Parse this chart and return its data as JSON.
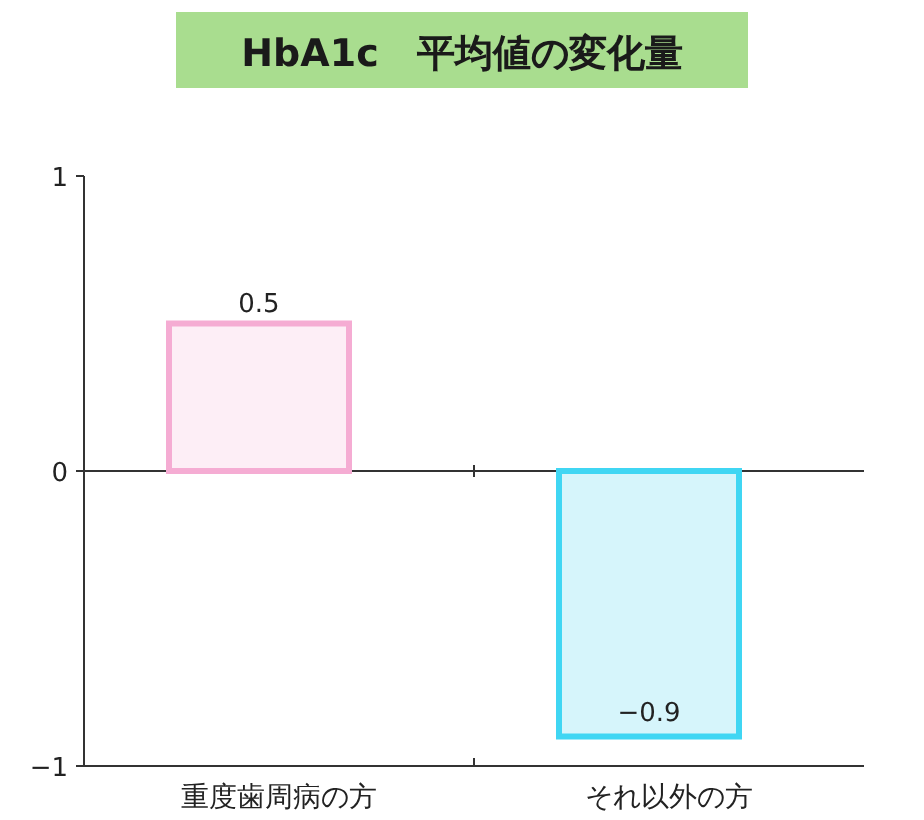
{
  "chart_data": {
    "type": "bar",
    "title": "HbA1c　平均値の変化量",
    "categories": [
      "重度歯周病の方",
      "それ以外の方"
    ],
    "values": [
      0.5,
      -0.9
    ],
    "colors": [
      "#fdeef6",
      "#d6f5fb"
    ],
    "ylim": [
      -1,
      1
    ],
    "yticks": [
      -1,
      0,
      1
    ],
    "data_labels": true
  }
}
